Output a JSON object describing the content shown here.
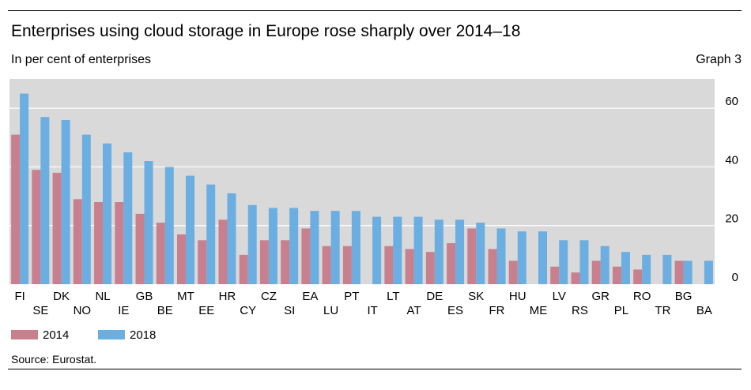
{
  "header": {
    "title": "Enterprises using cloud storage in Europe rose sharply over 2014–18",
    "subtitle": "In per cent of enterprises",
    "graph_label": "Graph 3"
  },
  "footer": {
    "source": "Source: Eurostat."
  },
  "colors": {
    "s2014": "#c8808e",
    "s2018": "#6aaee2",
    "plot_bg": "#d9d9d9",
    "grid": "#ffffff"
  },
  "chart_data": {
    "type": "bar",
    "title": "Enterprises using cloud storage in Europe rose sharply over 2014–18",
    "ylabel": "In per cent of enterprises",
    "ylim": [
      0,
      70
    ],
    "yticks": [
      0,
      20,
      40,
      60
    ],
    "grid": true,
    "legend_position": "bottom-left",
    "categories": [
      "FI",
      "SE",
      "DK",
      "NO",
      "NL",
      "IE",
      "GB",
      "BE",
      "MT",
      "EE",
      "HR",
      "CY",
      "CZ",
      "SI",
      "EA",
      "LU",
      "PT",
      "IT",
      "LT",
      "AT",
      "DE",
      "ES",
      "SK",
      "FR",
      "HU",
      "ME",
      "LV",
      "RS",
      "GR",
      "PL",
      "RO",
      "TR",
      "BG",
      "BA"
    ],
    "series": [
      {
        "name": "2014",
        "values": [
          51,
          39,
          38,
          29,
          28,
          28,
          24,
          21,
          17,
          15,
          22,
          10,
          15,
          15,
          19,
          13,
          13,
          null,
          13,
          12,
          11,
          14,
          19,
          12,
          8,
          null,
          6,
          4,
          8,
          6,
          5,
          null,
          8,
          null
        ]
      },
      {
        "name": "2018",
        "values": [
          65,
          57,
          56,
          51,
          48,
          45,
          42,
          40,
          37,
          34,
          31,
          27,
          26,
          26,
          25,
          25,
          25,
          23,
          23,
          23,
          22,
          22,
          21,
          19,
          18,
          18,
          15,
          15,
          13,
          11,
          10,
          10,
          8,
          8
        ]
      }
    ]
  }
}
